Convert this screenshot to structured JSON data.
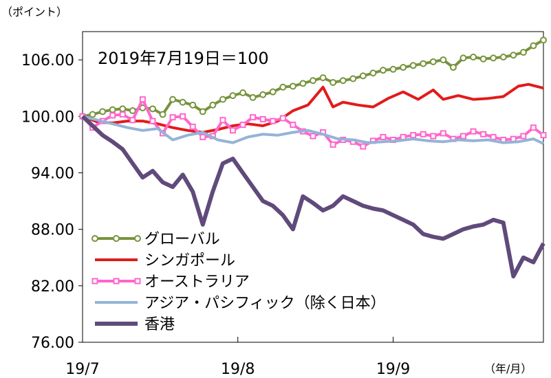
{
  "chart_data": {
    "type": "line",
    "y_unit_label": "（ポイント）",
    "x_unit_label": "（年/月）",
    "annotation": "2019年7月19日＝100",
    "ylim": [
      76,
      109
    ],
    "y_ticks": [
      "106.00",
      "100.00",
      "94.00",
      "88.00",
      "82.00",
      "76.00"
    ],
    "x_tick_labels": [
      "19/7",
      "19/8",
      "19/9"
    ],
    "x_days": [
      0,
      31,
      62
    ],
    "x_max": 92,
    "series": [
      {
        "name": "グローバル",
        "color": "#77933c",
        "marker": "circle",
        "x": [
          0,
          2,
          4,
          6,
          8,
          10,
          12,
          14,
          16,
          18,
          20,
          22,
          24,
          26,
          28,
          30,
          32,
          34,
          36,
          38,
          40,
          42,
          44,
          46,
          48,
          50,
          52,
          54,
          56,
          58,
          60,
          62,
          64,
          66,
          68,
          70,
          72,
          74,
          76,
          78,
          80,
          82,
          84,
          86,
          88,
          90,
          92
        ],
        "values": [
          100,
          100.2,
          100.5,
          100.7,
          100.8,
          100.6,
          100.9,
          100.8,
          100.2,
          101.8,
          101.5,
          101.2,
          100.5,
          101.2,
          101.8,
          102.2,
          102.5,
          102.0,
          102.3,
          102.6,
          103.1,
          103.2,
          103.5,
          103.8,
          104.1,
          103.6,
          103.8,
          104.0,
          104.3,
          104.6,
          104.9,
          105.0,
          105.2,
          105.4,
          105.6,
          105.8,
          106.0,
          105.2,
          106.2,
          106.3,
          106.1,
          106.2,
          106.3,
          106.5,
          106.8,
          107.5,
          108.1
        ]
      },
      {
        "name": "シンガポール",
        "color": "#e21b1b",
        "marker": "none",
        "x": [
          0,
          3,
          6,
          9,
          12,
          15,
          18,
          21,
          24,
          27,
          30,
          33,
          36,
          39,
          42,
          45,
          48,
          50,
          52,
          55,
          58,
          61,
          64,
          67,
          70,
          72,
          75,
          78,
          81,
          84,
          87,
          89,
          92
        ],
        "values": [
          100,
          99.4,
          99.3,
          99.5,
          99.5,
          99.2,
          98.8,
          98.5,
          98.3,
          98.6,
          99.0,
          99.2,
          99.0,
          99.5,
          100.6,
          101.2,
          103.1,
          101.0,
          101.5,
          101.2,
          101.0,
          101.9,
          102.6,
          101.8,
          102.8,
          101.8,
          102.2,
          101.8,
          101.9,
          102.1,
          103.2,
          103.4,
          103.0
        ]
      },
      {
        "name": "オーストラリア",
        "color": "#ff66cc",
        "marker": "square",
        "x": [
          0,
          2,
          4,
          6,
          8,
          10,
          12,
          14,
          16,
          18,
          20,
          22,
          24,
          26,
          28,
          30,
          32,
          34,
          36,
          38,
          40,
          42,
          44,
          46,
          48,
          50,
          52,
          54,
          56,
          58,
          60,
          62,
          64,
          66,
          68,
          70,
          72,
          74,
          76,
          78,
          80,
          82,
          84,
          86,
          88,
          90,
          92
        ],
        "values": [
          100,
          98.8,
          99.5,
          100.1,
          100.2,
          99.6,
          101.8,
          99.5,
          98.2,
          99.9,
          100.0,
          98.9,
          97.8,
          97.9,
          99.6,
          98.5,
          99.1,
          99.9,
          99.7,
          99.5,
          99.8,
          99.1,
          98.4,
          97.9,
          98.3,
          97.0,
          97.5,
          97.3,
          96.8,
          97.4,
          97.8,
          97.5,
          97.8,
          98.0,
          98.1,
          97.9,
          98.2,
          97.6,
          97.9,
          98.4,
          98.1,
          97.8,
          97.5,
          97.6,
          97.9,
          98.8,
          98.0
        ]
      },
      {
        "name": "アジア・パシフィック（除く日本）",
        "color": "#95b3d7",
        "marker": "none",
        "x": [
          0,
          3,
          6,
          9,
          12,
          15,
          18,
          21,
          24,
          27,
          30,
          33,
          36,
          39,
          42,
          45,
          48,
          51,
          54,
          57,
          60,
          63,
          66,
          69,
          72,
          75,
          78,
          81,
          84,
          87,
          90,
          92
        ],
        "values": [
          100,
          99.6,
          99.2,
          98.8,
          98.5,
          98.7,
          97.5,
          98.0,
          98.3,
          97.5,
          97.2,
          97.8,
          98.1,
          98.0,
          98.3,
          98.5,
          98.1,
          97.6,
          97.5,
          97.2,
          97.3,
          97.4,
          97.6,
          97.4,
          97.3,
          97.5,
          97.4,
          97.5,
          97.2,
          97.3,
          97.6,
          97.1
        ]
      },
      {
        "name": "香港",
        "color": "#604a7b",
        "marker": "none",
        "x": [
          0,
          2,
          4,
          6,
          8,
          10,
          12,
          14,
          16,
          18,
          20,
          22,
          24,
          26,
          28,
          30,
          32,
          34,
          36,
          38,
          40,
          42,
          44,
          46,
          48,
          50,
          52,
          54,
          56,
          58,
          60,
          62,
          64,
          66,
          68,
          70,
          72,
          74,
          76,
          78,
          80,
          82,
          84,
          86,
          88,
          90,
          92
        ],
        "values": [
          100,
          99.0,
          98.0,
          97.3,
          96.5,
          95.0,
          93.5,
          94.2,
          93.0,
          92.5,
          93.8,
          92.0,
          88.5,
          92.0,
          95.0,
          95.5,
          94.0,
          92.5,
          91.0,
          90.5,
          89.5,
          88.0,
          91.5,
          90.8,
          90.0,
          90.5,
          91.5,
          91.0,
          90.5,
          90.2,
          90.0,
          89.5,
          89.0,
          88.5,
          87.5,
          87.2,
          87.0,
          87.5,
          88.0,
          88.3,
          88.5,
          89.0,
          88.7,
          83.0,
          85.0,
          84.5,
          86.5
        ]
      }
    ]
  }
}
